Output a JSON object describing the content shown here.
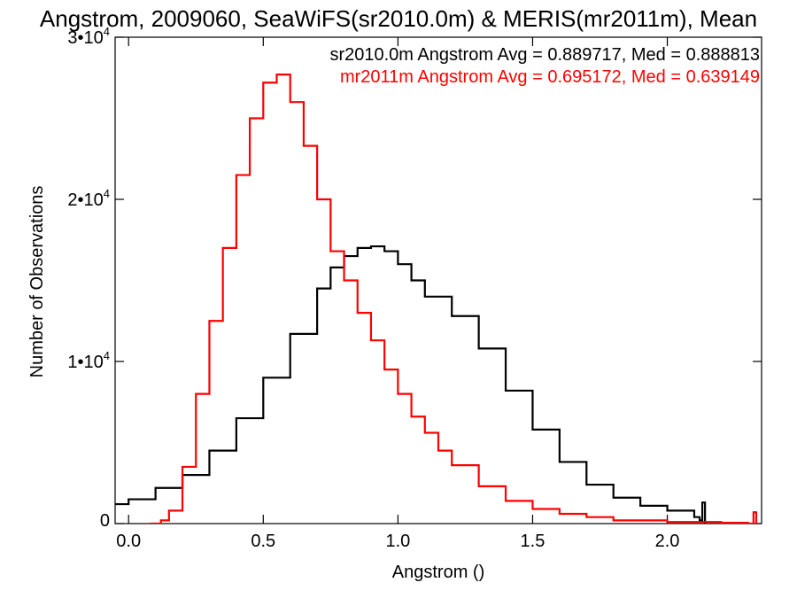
{
  "chart_data": {
    "type": "line",
    "title": "Angstrom, 2009060, SeaWiFS(sr2010.0m) & MERIS(mr2011m), Mean",
    "xlabel": "Angstrom ()",
    "ylabel": "Number of Observations",
    "xlim": [
      -0.05,
      2.35
    ],
    "ylim": [
      0,
      30000
    ],
    "x_ticks": [
      0.0,
      0.5,
      1.0,
      1.5,
      2.0
    ],
    "x_tick_labels": [
      "0.0",
      "0.5",
      "1.0",
      "1.5",
      "2.0"
    ],
    "y_ticks": [
      0,
      10000,
      20000,
      30000
    ],
    "y_tick_labels": [
      {
        "mantissa": "0",
        "exponent": ""
      },
      {
        "mantissa": "1•10",
        "exponent": "4"
      },
      {
        "mantissa": "2•10",
        "exponent": "4"
      },
      {
        "mantissa": "3•10",
        "exponent": "4"
      }
    ],
    "grid": false,
    "series": [
      {
        "label": "sr2010.0m Angstrom Avg = 0.889717, Med = 0.888813",
        "color": "#000000",
        "x": [
          -0.05,
          0.0,
          0.1,
          0.2,
          0.3,
          0.4,
          0.5,
          0.6,
          0.7,
          0.75,
          0.8,
          0.85,
          0.9,
          0.95,
          1.0,
          1.05,
          1.1,
          1.2,
          1.3,
          1.4,
          1.5,
          1.6,
          1.7,
          1.8,
          1.9,
          2.0,
          2.1,
          2.12,
          2.13,
          2.14
        ],
        "y": [
          1200,
          1500,
          2200,
          3000,
          4500,
          6500,
          9000,
          11700,
          14500,
          15800,
          16500,
          17000,
          17100,
          16800,
          16000,
          15000,
          14000,
          12800,
          10800,
          8200,
          5800,
          3800,
          2400,
          1600,
          1100,
          800,
          400,
          200,
          1300,
          0
        ]
      },
      {
        "label": "mr2011m Angstrom Avg = 0.695172, Med = 0.639149",
        "color": "#ff0000",
        "x": [
          0.08,
          0.12,
          0.15,
          0.2,
          0.25,
          0.3,
          0.35,
          0.4,
          0.45,
          0.5,
          0.55,
          0.6,
          0.65,
          0.7,
          0.75,
          0.8,
          0.85,
          0.9,
          0.95,
          1.0,
          1.05,
          1.1,
          1.15,
          1.2,
          1.3,
          1.4,
          1.5,
          1.6,
          1.7,
          1.8,
          2.0,
          2.2,
          2.3,
          2.32,
          2.33
        ],
        "y": [
          0,
          200,
          800,
          3500,
          8000,
          12500,
          17000,
          21500,
          25000,
          27200,
          27700,
          26000,
          23300,
          20000,
          16800,
          15000,
          13000,
          11300,
          9500,
          8000,
          6600,
          5600,
          4500,
          3600,
          2300,
          1400,
          900,
          600,
          400,
          200,
          100,
          50,
          0,
          700,
          0
        ]
      }
    ]
  }
}
